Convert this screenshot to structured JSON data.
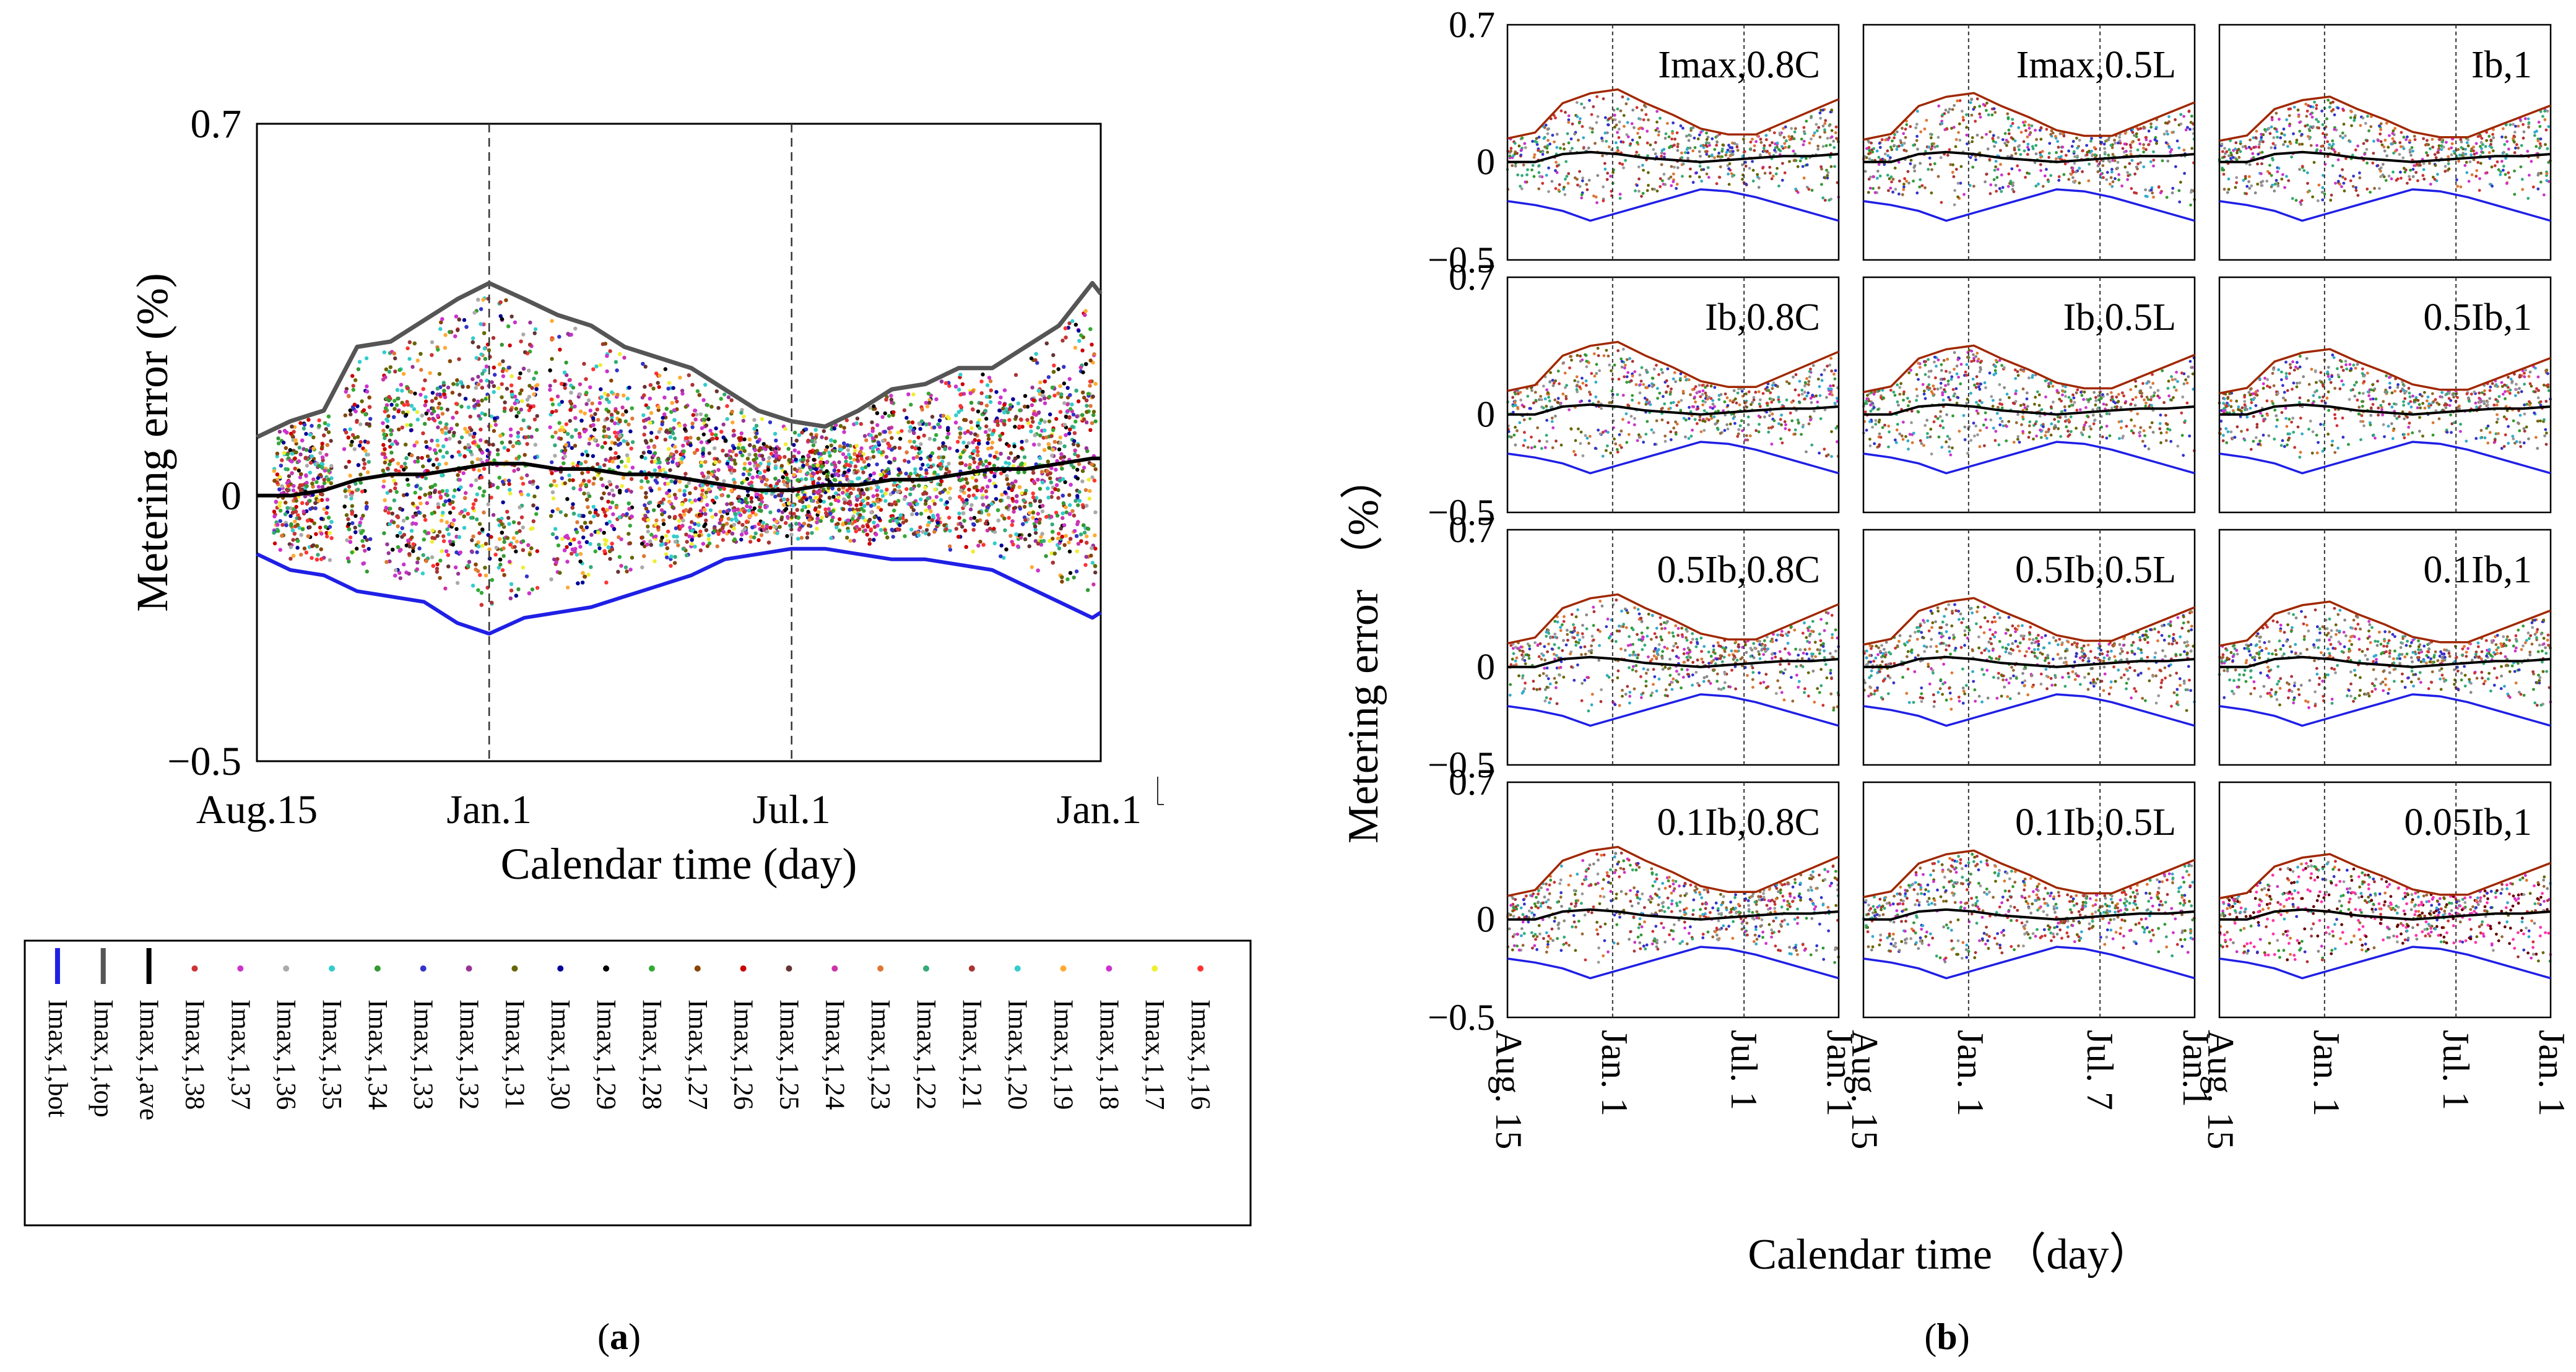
{
  "chart_data": [
    {
      "panel": "(a)",
      "type": "scatter",
      "title": "",
      "xlabel": "Calendar time (day)",
      "ylabel": "Metering error (%)",
      "ylim": [
        -0.5,
        0.7
      ],
      "xlim": [
        0,
        505
      ],
      "x_ticks": [
        {
          "label": "Aug.15",
          "x": 0
        },
        {
          "label": "Jan.1",
          "x": 139
        },
        {
          "label": "Jul.1",
          "x": 320
        },
        {
          "label": "Jan.1",
          "x": 504
        }
      ],
      "y_ticks": [
        {
          "label": "0.7",
          "y": 0.7
        },
        {
          "label": "0",
          "y": 0
        },
        {
          "label": "−0.5",
          "y": -0.5
        }
      ],
      "vlines": [
        139,
        320
      ],
      "series": [
        {
          "name": "Imax,1,bot",
          "kind": "line",
          "color": "#1f1fe6",
          "x": [
            0,
            20,
            40,
            60,
            80,
            100,
            120,
            139,
            160,
            180,
            200,
            220,
            240,
            260,
            280,
            300,
            320,
            340,
            360,
            380,
            400,
            420,
            440,
            460,
            480,
            500,
            505
          ],
          "values": [
            -0.11,
            -0.14,
            -0.15,
            -0.18,
            -0.19,
            -0.2,
            -0.24,
            -0.26,
            -0.23,
            -0.22,
            -0.21,
            -0.19,
            -0.17,
            -0.15,
            -0.12,
            -0.11,
            -0.1,
            -0.1,
            -0.11,
            -0.12,
            -0.12,
            -0.13,
            -0.14,
            -0.17,
            -0.2,
            -0.23,
            -0.22
          ]
        },
        {
          "name": "Imax,1,top",
          "kind": "line",
          "color": "#555555",
          "x": [
            0,
            20,
            40,
            60,
            80,
            100,
            120,
            139,
            160,
            180,
            200,
            220,
            240,
            260,
            280,
            300,
            320,
            340,
            360,
            380,
            400,
            420,
            440,
            460,
            480,
            500,
            505
          ],
          "values": [
            0.11,
            0.14,
            0.16,
            0.28,
            0.29,
            0.33,
            0.37,
            0.4,
            0.37,
            0.34,
            0.32,
            0.28,
            0.26,
            0.24,
            0.2,
            0.16,
            0.14,
            0.13,
            0.16,
            0.2,
            0.21,
            0.24,
            0.24,
            0.28,
            0.32,
            0.4,
            0.38
          ]
        },
        {
          "name": "Imax,1,ave",
          "kind": "line",
          "color": "#000000",
          "x": [
            0,
            20,
            40,
            60,
            80,
            100,
            120,
            139,
            160,
            180,
            200,
            220,
            240,
            260,
            280,
            300,
            320,
            340,
            360,
            380,
            400,
            420,
            440,
            460,
            480,
            500,
            505
          ],
          "values": [
            0.0,
            0.0,
            0.01,
            0.03,
            0.04,
            0.04,
            0.05,
            0.06,
            0.06,
            0.05,
            0.05,
            0.04,
            0.04,
            0.03,
            0.02,
            0.01,
            0.01,
            0.02,
            0.02,
            0.03,
            0.03,
            0.04,
            0.05,
            0.05,
            0.06,
            0.07,
            0.07
          ]
        }
      ],
      "scatter_series_names": [
        "Imax,1,38",
        "Imax,1,37",
        "Imax,1,36",
        "Imax,1,35",
        "Imax,1,34",
        "Imax,1,33",
        "Imax,1,32",
        "Imax,1,31",
        "Imax,1,30",
        "Imax,1,29",
        "Imax,1,28",
        "Imax,1,27",
        "Imax,1,26",
        "Imax,1,25",
        "Imax,1,24",
        "Imax,1,23",
        "Imax,1,22",
        "Imax,1,21",
        "Imax,1,20",
        "Imax,1,19",
        "Imax,1,18",
        "Imax,1,17",
        "Imax,1,16"
      ],
      "scatter_colors": [
        "#cc3333",
        "#cc33cc",
        "#aaaaaa",
        "#33cccc",
        "#339933",
        "#3333cc",
        "#993399",
        "#666600",
        "#000099",
        "#000000",
        "#33aa33",
        "#884400",
        "#cc0000",
        "#663333",
        "#cc33aa",
        "#dd7733",
        "#33aa77",
        "#aa3333",
        "#33cccc",
        "#ffaa33",
        "#cc33cc",
        "#eeee33",
        "#ff3333"
      ]
    },
    {
      "panel": "(b)",
      "type": "scatter",
      "xlabel": "Calendar time （day）",
      "ylabel": "Metering error （%）",
      "ylim": [
        -0.5,
        0.7
      ],
      "y_ticks": [
        {
          "label": "0.7",
          "y": 0.7
        },
        {
          "label": "0",
          "y": 0
        },
        {
          "label": "−0.5",
          "y": -0.5
        }
      ],
      "column_x_ticks": [
        [
          "Aug. 15",
          "Jan. 1",
          "Jul. 1",
          "Jan. 1"
        ],
        [
          "Aug. 15",
          "Jan. 1",
          "Jul. 7",
          "Jan.1"
        ],
        [
          "Aug. 15",
          "Jan. 1",
          "Jul. 1",
          "Jan. 1"
        ]
      ],
      "subplots": [
        [
          "Imax,0.8C",
          "Imax,0.5L",
          "Ib,1"
        ],
        [
          "Ib,0.8C",
          "Ib,0.5L",
          "0.5Ib,1"
        ],
        [
          "0.5Ib,0.8C",
          "0.5Ib,0.5L",
          "0.1Ib,1"
        ],
        [
          "0.1Ib,0.8C",
          "0.1Ib,0.5L",
          "0.05Ib,1"
        ]
      ],
      "series": [
        {
          "name": "top",
          "color": "#a02800",
          "values": [
            0.12,
            0.15,
            0.3,
            0.35,
            0.37,
            0.3,
            0.24,
            0.17,
            0.14,
            0.14,
            0.2,
            0.26,
            0.32
          ]
        },
        {
          "name": "ave",
          "color": "#000000",
          "values": [
            0.0,
            0.0,
            0.04,
            0.05,
            0.04,
            0.02,
            0.01,
            0.0,
            0.01,
            0.02,
            0.03,
            0.03,
            0.04
          ]
        },
        {
          "name": "bot",
          "color": "#1f1fe6",
          "values": [
            -0.2,
            -0.22,
            -0.25,
            -0.3,
            -0.26,
            -0.22,
            -0.18,
            -0.14,
            -0.15,
            -0.18,
            -0.22,
            -0.26,
            -0.3
          ]
        }
      ]
    }
  ],
  "labels": {
    "panel_a": "(a)",
    "panel_b": "(b)",
    "mark_a": "a",
    "mark_b": "b",
    "paren_open": "(",
    "paren_close": ")"
  }
}
